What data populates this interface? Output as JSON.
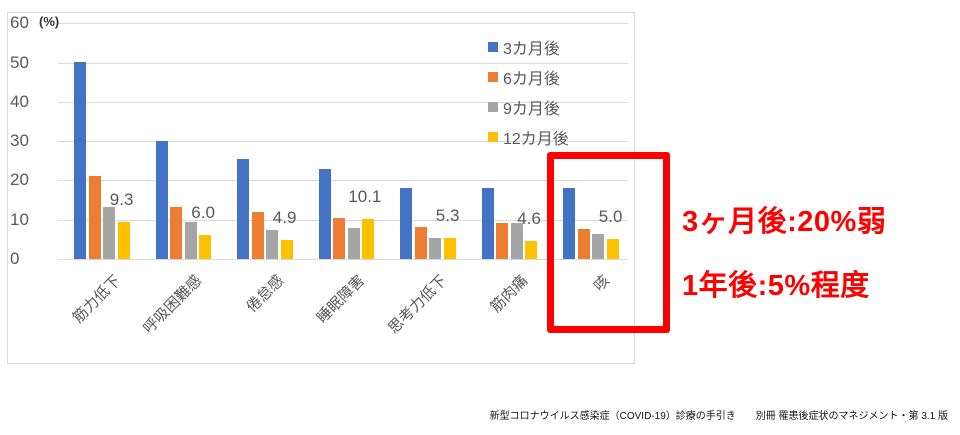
{
  "chart_data": {
    "type": "bar",
    "title": "",
    "xlabel": "",
    "ylabel": "(%)",
    "ylim": [
      0,
      60
    ],
    "yticks": [
      0,
      10,
      20,
      30,
      40,
      50,
      60
    ],
    "grid": true,
    "legend_position": "top-right",
    "categories": [
      "筋力低下",
      "呼吸困難感",
      "倦怠感",
      "睡眠障害",
      "思考力低下",
      "筋肉痛",
      "咳"
    ],
    "series": [
      {
        "name": "3カ月後",
        "color": "#4472c4",
        "values": [
          50.1,
          30.0,
          25.4,
          22.9,
          18.0,
          18.0,
          18.0
        ]
      },
      {
        "name": "6カ月後",
        "color": "#ed7d31",
        "values": [
          21.1,
          13.3,
          12.0,
          10.5,
          8.1,
          9.1,
          7.6
        ]
      },
      {
        "name": "9カ月後",
        "color": "#a5a5a5",
        "values": [
          13.3,
          9.4,
          7.5,
          7.8,
          5.3,
          9.1,
          6.4
        ]
      },
      {
        "name": "12カ月後",
        "color": "#ffc000",
        "values": [
          9.3,
          6.0,
          4.9,
          10.1,
          5.3,
          4.6,
          5.0
        ]
      }
    ],
    "data_labels": {
      "series": "12カ月後",
      "values": [
        "9.3",
        "6.0",
        "4.9",
        "10.1",
        "5.3",
        "4.6",
        "5.0"
      ]
    },
    "highlight": {
      "category": "咳",
      "color": "#ff0000"
    }
  },
  "axis": {
    "unit_label": "(%)",
    "ticks": [
      "60",
      "50",
      "40",
      "30",
      "20",
      "10",
      "0"
    ]
  },
  "annotations": {
    "line1": "3ヶ月後:20%弱",
    "line2": "1年後:5%程度"
  },
  "footer": "新型コロナウイルス感染症（COVID-19）診療の手引き　　別冊 罹患後症状のマネジメント・第 3.1 版"
}
